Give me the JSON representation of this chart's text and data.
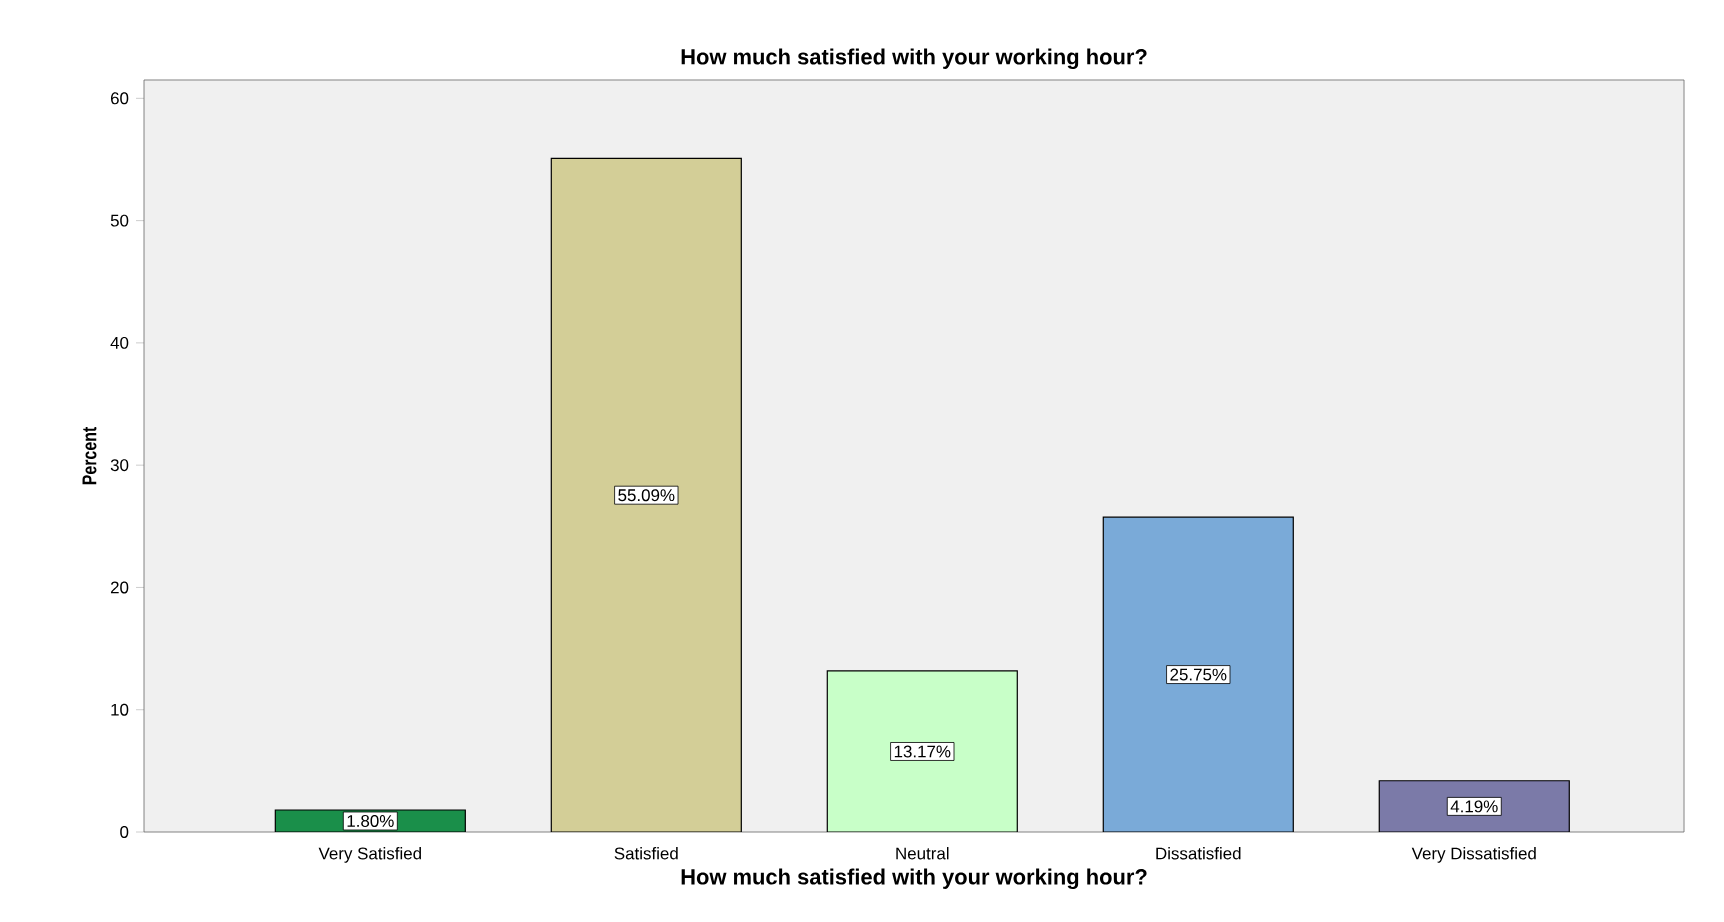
{
  "chart_data": {
    "type": "bar",
    "title": "How much satisfied with your working hour?",
    "xlabel": "How much satisfied with your working hour?",
    "ylabel": "Percent",
    "categories": [
      "Very Satisfied",
      "Satisfied",
      "Neutral",
      "Dissatisfied",
      "Very Dissatisfied"
    ],
    "values": [
      1.8,
      55.09,
      13.17,
      25.75,
      4.19
    ],
    "value_labels": [
      "1.80%",
      "55.09%",
      "13.17%",
      "25.75%",
      "4.19%"
    ],
    "colors": [
      "#1a8f4a",
      "#d3ce97",
      "#c8ffc8",
      "#7aaad8",
      "#7b7aa8"
    ],
    "ylim": [
      0,
      61.5
    ],
    "yticks": [
      0,
      10,
      20,
      30,
      40,
      50,
      60
    ],
    "grid": false
  }
}
